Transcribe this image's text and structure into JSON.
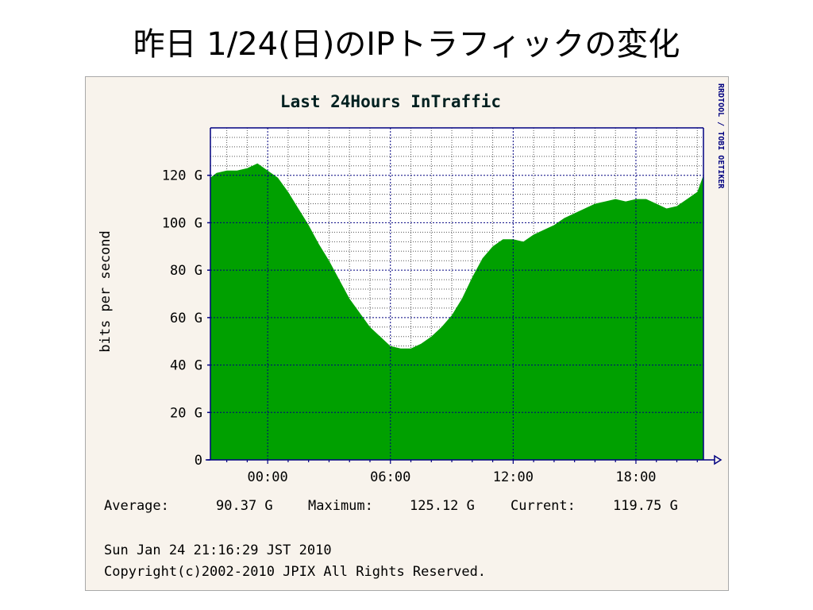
{
  "slide": {
    "title": "昨日 1/24(日)のIPトラフィックの変化"
  },
  "graph": {
    "watermark": "RRDTOOL / TOBI OETIKER",
    "stats": {
      "average_label": "Average:",
      "average_value": "90.37 G",
      "maximum_label": "Maximum:",
      "maximum_value": "125.12 G",
      "current_label": "Current:",
      "current_value": "119.75 G"
    },
    "timestamp": "Sun Jan 24 21:16:29 JST 2010",
    "copyright": "Copyright(c)2002-2010 JPIX All Rights Reserved."
  },
  "colors": {
    "area": "#00a000",
    "grid_major": "#000080",
    "grid_minor": "#555555",
    "text": "#000000",
    "title_text": "#002020",
    "panel_bg": "#f8f3ec",
    "plot_bg": "#ffffff"
  },
  "chart_data": {
    "type": "area",
    "title": "Last 24Hours InTraffic",
    "ylabel": "bits per second",
    "xlabel": "",
    "ylim": [
      0,
      140
    ],
    "y_ticks": [
      0,
      20,
      40,
      60,
      80,
      100,
      120
    ],
    "y_tick_labels": [
      "0",
      "20 G",
      "40 G",
      "60 G",
      "80 G",
      "100 G",
      "120 G"
    ],
    "x_tick_hours": [
      0,
      6,
      12,
      18
    ],
    "x_tick_labels": [
      "00:00",
      "06:00",
      "12:00",
      "18:00"
    ],
    "x_unit": "hour of day (negative = previous day)",
    "x_range": [
      -2.8,
      21.3
    ],
    "grid": true,
    "series": [
      {
        "x": [
          -2.8,
          -2.5,
          -2.0,
          -1.5,
          -1.0,
          -0.5,
          0.0,
          0.5,
          1.0,
          1.5,
          2.0,
          2.5,
          3.0,
          3.5,
          4.0,
          4.5,
          5.0,
          5.5,
          6.0,
          6.5,
          7.0,
          7.5,
          8.0,
          8.5,
          9.0,
          9.5,
          10.0,
          10.5,
          11.0,
          11.5,
          12.0,
          12.5,
          13.0,
          13.5,
          14.0,
          14.5,
          15.0,
          15.5,
          16.0,
          16.5,
          17.0,
          17.5,
          18.0,
          18.5,
          19.0,
          19.5,
          20.0,
          20.5,
          21.0,
          21.3
        ],
        "values": [
          119,
          121,
          122,
          122,
          123,
          125,
          122,
          119,
          113,
          106,
          99,
          91,
          84,
          76,
          68,
          62,
          56,
          52,
          48,
          47,
          47,
          49,
          52,
          56,
          61,
          68,
          77,
          85,
          90,
          93,
          93,
          92,
          95,
          97,
          99,
          102,
          104,
          106,
          108,
          109,
          110,
          109,
          110,
          110,
          108,
          106,
          107,
          110,
          113,
          120
        ]
      }
    ]
  }
}
